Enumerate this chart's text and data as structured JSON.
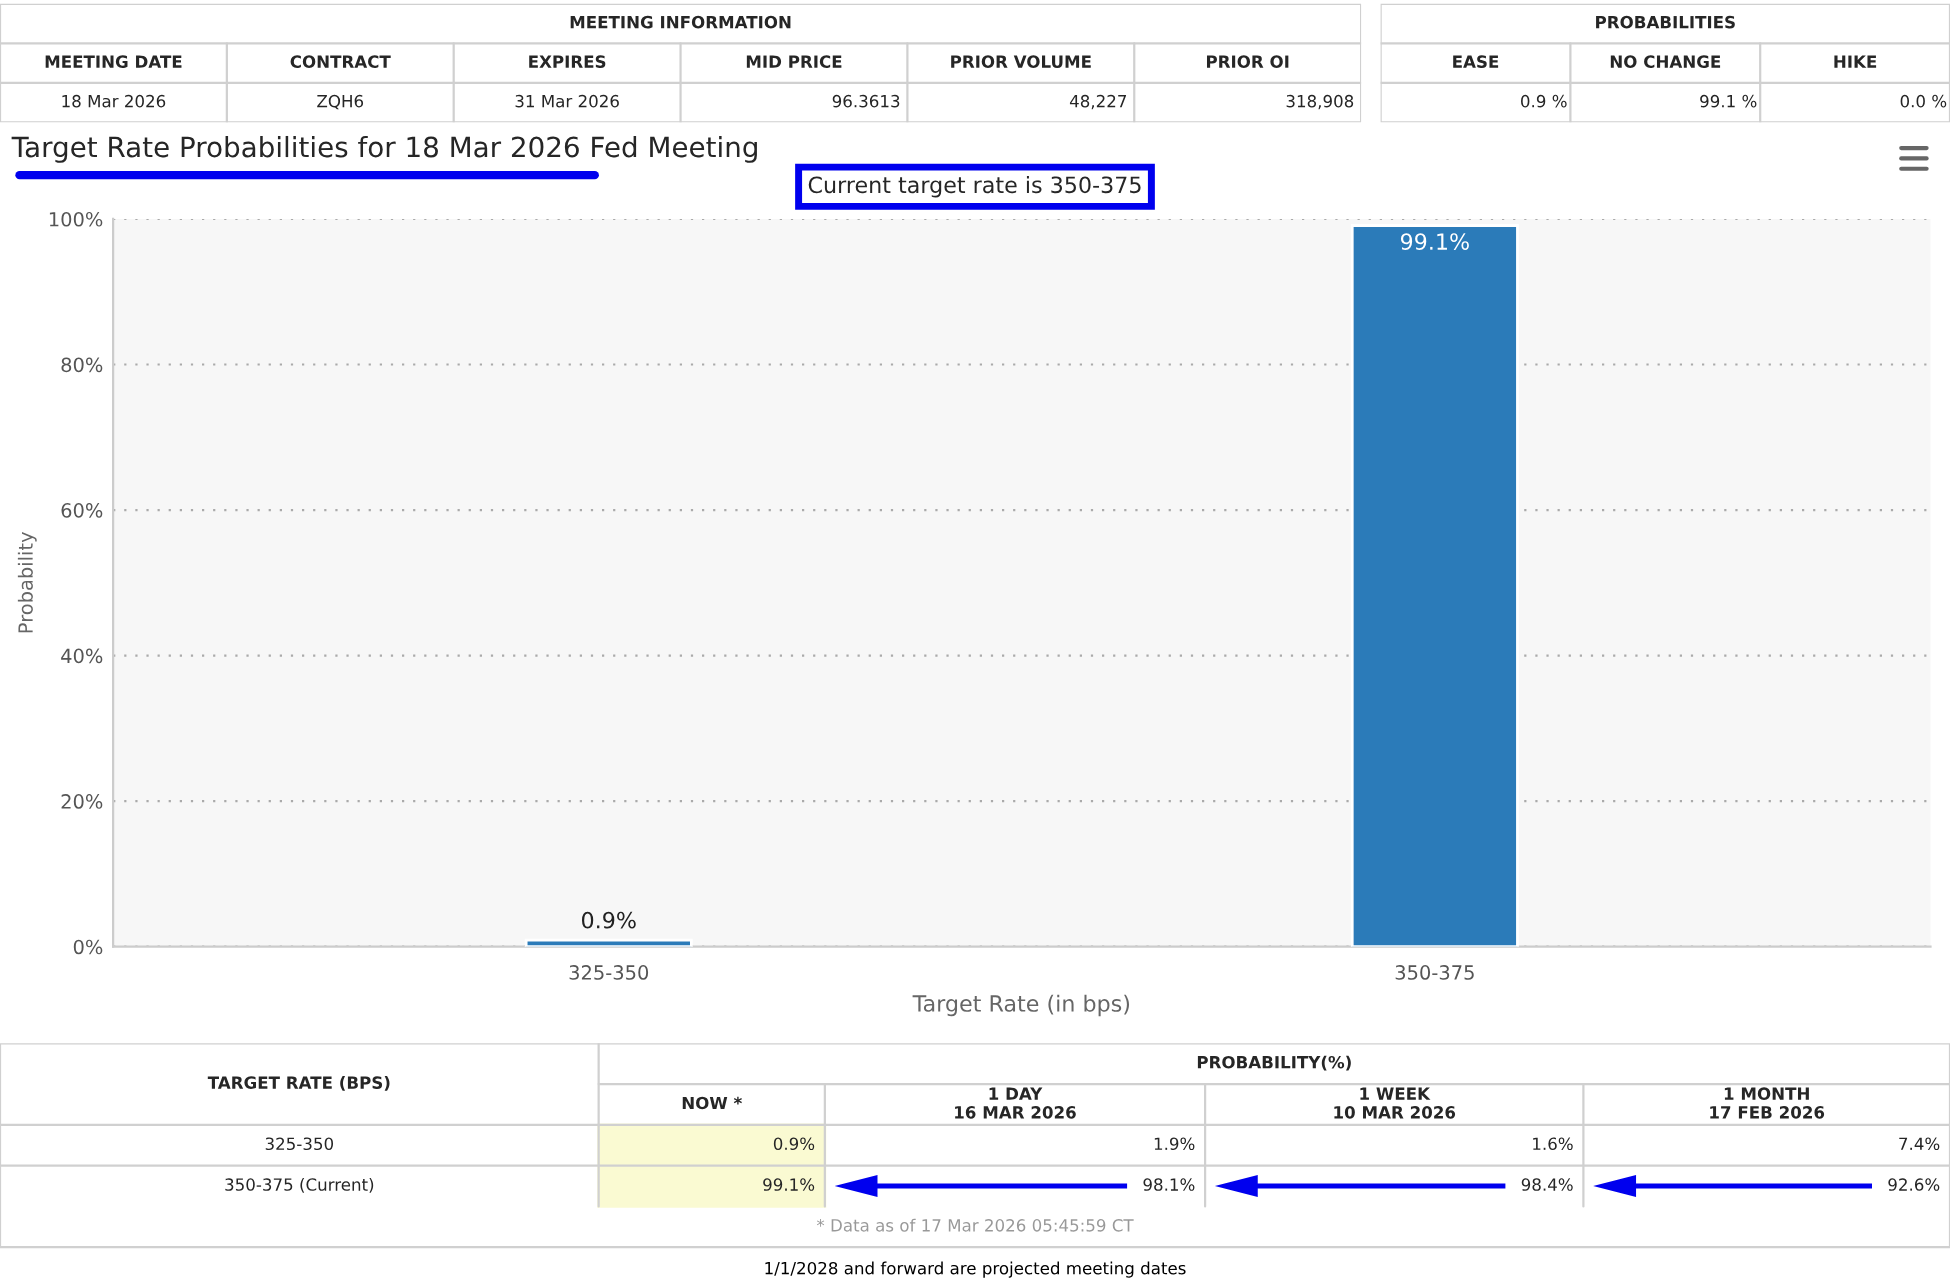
{
  "chart_data": [
    {
      "type": "other",
      "title": "MEETING INFORMATION",
      "categories": [
        "MEETING DATE",
        "CONTRACT",
        "EXPIRES",
        "MID PRICE",
        "PRIOR VOLUME",
        "PRIOR OI"
      ],
      "cell_labels": [
        [
          "18 Mar 2026",
          "ZQH6",
          "31 Mar 2026",
          "96.3613",
          "48,227",
          "318,908"
        ]
      ]
    },
    {
      "type": "other",
      "title": "PROBABILITIES",
      "categories": [
        "EASE",
        "NO CHANGE",
        "HIKE"
      ],
      "cell_labels": [
        [
          "0.9 %",
          "99.1 %",
          "0.0 %"
        ]
      ]
    },
    {
      "type": "bar",
      "title": "Target Rate Probabilities for 18 Mar 2026 Fed Meeting",
      "subtitle": "Current target rate is 350-375",
      "xlabel": "Target Rate (in bps)",
      "ylabel": "Probability",
      "categories": [
        "325-350",
        "350-375"
      ],
      "values": [
        0.9,
        99.1
      ],
      "color": "#2b7bb9",
      "value_labels": [
        "0.9%",
        "99.1%"
      ],
      "ylim": [
        0,
        100
      ],
      "yticks": [
        {
          "value": 0,
          "label": "0%"
        },
        {
          "value": 20,
          "label": "20%"
        },
        {
          "value": 40,
          "label": "40%"
        },
        {
          "value": 60,
          "label": "60%"
        },
        {
          "value": 80,
          "label": "80%"
        },
        {
          "value": 100,
          "label": "100%"
        }
      ],
      "grid": "y"
    },
    {
      "type": "other",
      "title": "PROBABILITY(%)",
      "categories": [
        "TARGET RATE (BPS)",
        "NOW *",
        "1 DAY\n16 MAR 2026",
        "1 WEEK\n10 MAR 2026",
        "1 MONTH\n17 FEB 2026"
      ],
      "cell_labels": [
        [
          "325-350",
          "0.9%",
          "1.9%",
          "1.6%",
          "7.4%"
        ],
        [
          "350-375 (Current)",
          "99.1%",
          "98.1%",
          "98.4%",
          "92.6%"
        ]
      ],
      "annotations": [
        "* Data as of 17 Mar 2026 05:45:59 CT",
        "1/1/2028 and forward are projected meeting dates"
      ]
    }
  ]
}
